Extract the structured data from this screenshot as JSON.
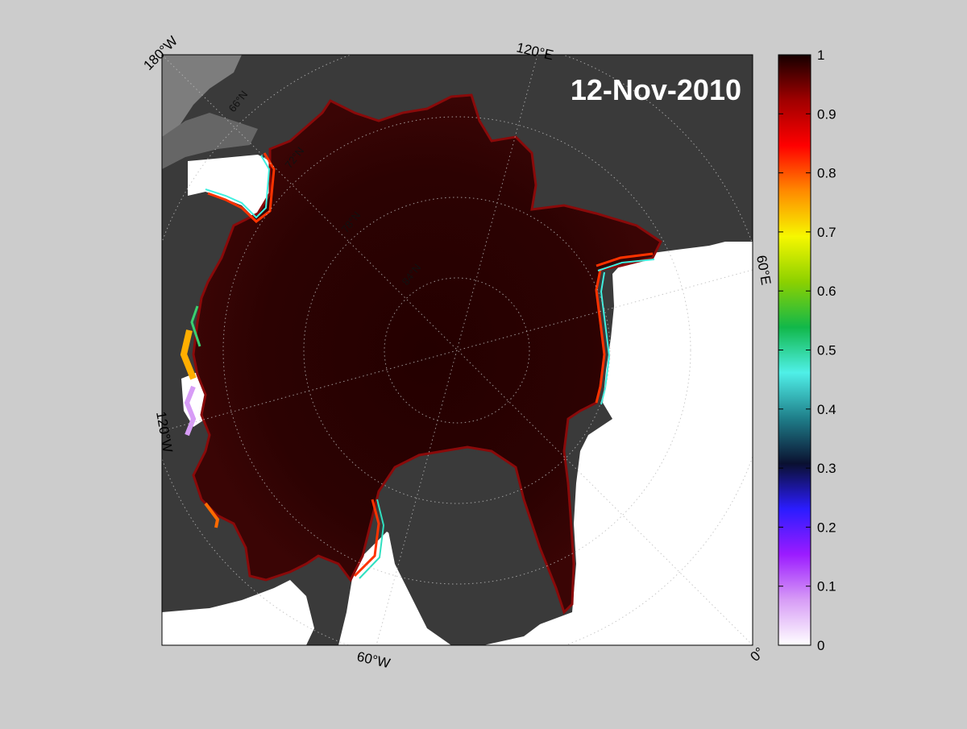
{
  "map": {
    "date_label": "12-Nov-2010",
    "colors": {
      "background": "#cccccc",
      "land": "#3a3a3a",
      "land_light": "#7d7d7d",
      "ocean_open": "#ffffff",
      "ice_core": "#2a0000"
    },
    "longitude_labels": {
      "lon_180w": "180°W",
      "lon_120e": "120°E",
      "lon_60e": "60°E",
      "lon_120w": "120°W",
      "lon_60w": "60°W",
      "lon_0": "0°"
    },
    "latitude_labels": {
      "lat_66n": "66°N",
      "lat_72n": "72°N",
      "lat_78n": "78°N",
      "lat_84n": "84°N"
    }
  },
  "colorbar": {
    "tick_labels": [
      "1",
      "0.9",
      "0.8",
      "0.7",
      "0.6",
      "0.5",
      "0.4",
      "0.3",
      "0.2",
      "0.1",
      "0"
    ],
    "colorscale": [
      "#ffffff",
      "#d79cf6",
      "#9b1bff",
      "#2b1cff",
      "#0a1030",
      "#1f7f8a",
      "#4ff0e8",
      "#11b84a",
      "#8cd100",
      "#f6f700",
      "#ff8a00",
      "#ff0000",
      "#a00000",
      "#160000"
    ],
    "range": [
      0,
      1
    ]
  }
}
